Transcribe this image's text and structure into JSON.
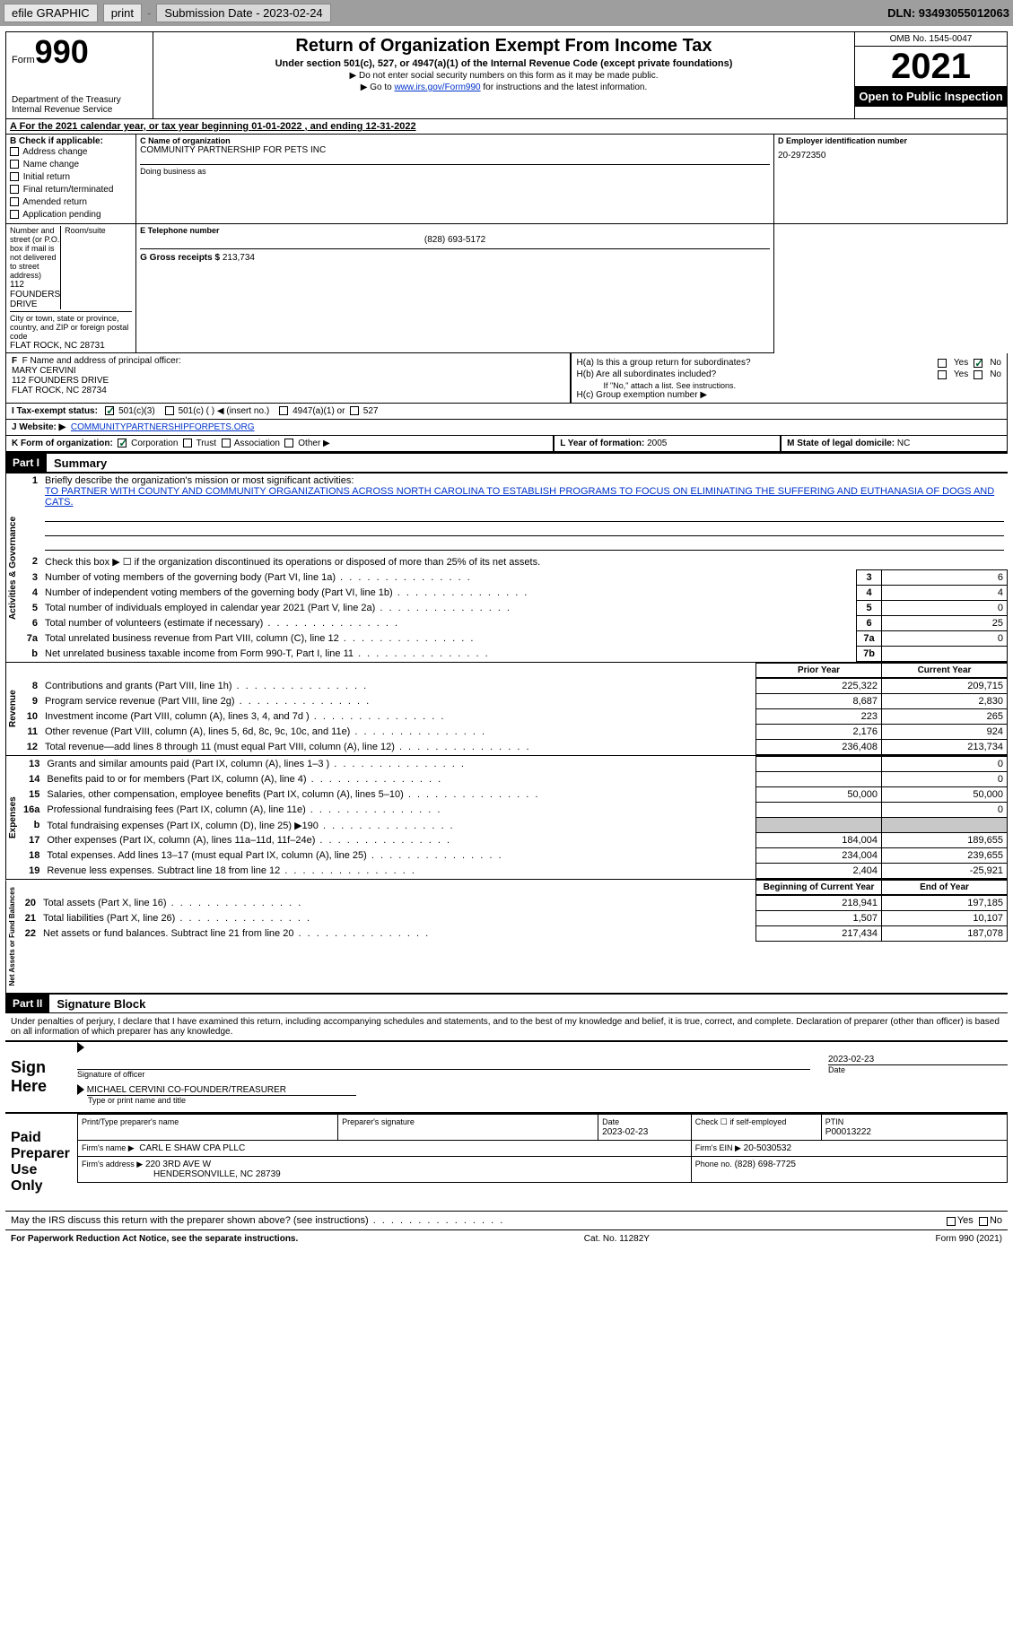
{
  "toolbar": {
    "efile": "efile GRAPHIC",
    "print": "print",
    "sub_date_label": "Submission Date - 2023-02-24",
    "dln": "DLN: 93493055012063"
  },
  "header": {
    "form_word": "Form",
    "form_num": "990",
    "dept": "Department of the Treasury",
    "irs": "Internal Revenue Service",
    "title": "Return of Organization Exempt From Income Tax",
    "subtitle": "Under section 501(c), 527, or 4947(a)(1) of the Internal Revenue Code (except private foundations)",
    "warn1": "▶ Do not enter social security numbers on this form as it may be made public.",
    "warn2_pre": "▶ Go to ",
    "warn2_link": "www.irs.gov/Form990",
    "warn2_post": " for instructions and the latest information.",
    "omb": "OMB No. 1545-0047",
    "year": "2021",
    "open": "Open to Public Inspection"
  },
  "period": {
    "line": "A For the 2021 calendar year, or tax year beginning ",
    "begin": "01-01-2022",
    "mid": " , and ending ",
    "end": "12-31-2022"
  },
  "boxB": {
    "title": "B Check if applicable:",
    "items": [
      "Address change",
      "Name change",
      "Initial return",
      "Final return/terminated",
      "Amended return",
      "Application pending"
    ]
  },
  "boxC": {
    "name_label": "C Name of organization",
    "name": "COMMUNITY PARTNERSHIP FOR PETS INC",
    "dba_label": "Doing business as",
    "street_label": "Number and street (or P.O. box if mail is not delivered to street address)",
    "room_label": "Room/suite",
    "street": "112 FOUNDERS DRIVE",
    "city_label": "City or town, state or province, country, and ZIP or foreign postal code",
    "city": "FLAT ROCK, NC  28731"
  },
  "boxD": {
    "label": "D Employer identification number",
    "val": "20-2972350"
  },
  "boxE": {
    "label": "E Telephone number",
    "val": "(828) 693-5172"
  },
  "boxG": {
    "label": "G Gross receipts $",
    "val": "213,734"
  },
  "boxF": {
    "label": "F Name and address of principal officer:",
    "name": "MARY CERVINI",
    "street": "112 FOUNDERS DRIVE",
    "city": "FLAT ROCK, NC  28734"
  },
  "boxH": {
    "a": "H(a)  Is this a group return for subordinates?",
    "b": "H(b)  Are all subordinates included?",
    "b_note": "If \"No,\" attach a list. See instructions.",
    "c": "H(c)  Group exemption number ▶"
  },
  "boxI": {
    "label": "I  Tax-exempt status:",
    "opts": [
      "501(c)(3)",
      "501(c) (  ) ◀ (insert no.)",
      "4947(a)(1) or",
      "527"
    ]
  },
  "boxJ": {
    "label": "J  Website: ▶",
    "val": "COMMUNITYPARTNERSHIPFORPETS.ORG"
  },
  "boxK": {
    "label": "K Form of organization:",
    "opts": [
      "Corporation",
      "Trust",
      "Association",
      "Other ▶"
    ]
  },
  "boxL": {
    "label": "L Year of formation:",
    "val": "2005"
  },
  "boxM": {
    "label": "M State of legal domicile:",
    "val": "NC"
  },
  "part1": {
    "hdr": "Part I",
    "title": "Summary",
    "q1": "Briefly describe the organization's mission or most significant activities:",
    "mission": "TO PARTNER WITH COUNTY AND COMMUNITY ORGANIZATIONS ACROSS NORTH CAROLINA TO ESTABLISH PROGRAMS TO FOCUS ON ELIMINATING THE SUFFERING AND EUTHANASIA OF DOGS AND CATS.",
    "q2": "Check this box ▶ ☐ if the organization discontinued its operations or disposed of more than 25% of its net assets.",
    "vert_act": "Activities & Governance",
    "vert_rev": "Revenue",
    "vert_exp": "Expenses",
    "vert_net": "Net Assets or Fund Balances",
    "lines_gov": [
      {
        "n": "3",
        "d": "Number of voting members of the governing body (Part VI, line 1a)",
        "box": "3",
        "v": "6"
      },
      {
        "n": "4",
        "d": "Number of independent voting members of the governing body (Part VI, line 1b)",
        "box": "4",
        "v": "4"
      },
      {
        "n": "5",
        "d": "Total number of individuals employed in calendar year 2021 (Part V, line 2a)",
        "box": "5",
        "v": "0"
      },
      {
        "n": "6",
        "d": "Total number of volunteers (estimate if necessary)",
        "box": "6",
        "v": "25"
      },
      {
        "n": "7a",
        "d": "Total unrelated business revenue from Part VIII, column (C), line 12",
        "box": "7a",
        "v": "0"
      },
      {
        "n": "b",
        "d": "Net unrelated business taxable income from Form 990-T, Part I, line 11",
        "box": "7b",
        "v": ""
      }
    ],
    "col_prior": "Prior Year",
    "col_current": "Current Year",
    "lines_rev": [
      {
        "n": "8",
        "d": "Contributions and grants (Part VIII, line 1h)",
        "p": "225,322",
        "c": "209,715"
      },
      {
        "n": "9",
        "d": "Program service revenue (Part VIII, line 2g)",
        "p": "8,687",
        "c": "2,830"
      },
      {
        "n": "10",
        "d": "Investment income (Part VIII, column (A), lines 3, 4, and 7d )",
        "p": "223",
        "c": "265"
      },
      {
        "n": "11",
        "d": "Other revenue (Part VIII, column (A), lines 5, 6d, 8c, 9c, 10c, and 11e)",
        "p": "2,176",
        "c": "924"
      },
      {
        "n": "12",
        "d": "Total revenue—add lines 8 through 11 (must equal Part VIII, column (A), line 12)",
        "p": "236,408",
        "c": "213,734"
      }
    ],
    "lines_exp": [
      {
        "n": "13",
        "d": "Grants and similar amounts paid (Part IX, column (A), lines 1–3 )",
        "p": "",
        "c": "0"
      },
      {
        "n": "14",
        "d": "Benefits paid to or for members (Part IX, column (A), line 4)",
        "p": "",
        "c": "0"
      },
      {
        "n": "15",
        "d": "Salaries, other compensation, employee benefits (Part IX, column (A), lines 5–10)",
        "p": "50,000",
        "c": "50,000"
      },
      {
        "n": "16a",
        "d": "Professional fundraising fees (Part IX, column (A), line 11e)",
        "p": "",
        "c": "0"
      },
      {
        "n": "b",
        "d": "Total fundraising expenses (Part IX, column (D), line 25) ▶190",
        "p": "gray",
        "c": "gray"
      },
      {
        "n": "17",
        "d": "Other expenses (Part IX, column (A), lines 11a–11d, 11f–24e)",
        "p": "184,004",
        "c": "189,655"
      },
      {
        "n": "18",
        "d": "Total expenses. Add lines 13–17 (must equal Part IX, column (A), line 25)",
        "p": "234,004",
        "c": "239,655"
      },
      {
        "n": "19",
        "d": "Revenue less expenses. Subtract line 18 from line 12",
        "p": "2,404",
        "c": "-25,921"
      }
    ],
    "col_begin": "Beginning of Current Year",
    "col_end": "End of Year",
    "lines_net": [
      {
        "n": "20",
        "d": "Total assets (Part X, line 16)",
        "p": "218,941",
        "c": "197,185"
      },
      {
        "n": "21",
        "d": "Total liabilities (Part X, line 26)",
        "p": "1,507",
        "c": "10,107"
      },
      {
        "n": "22",
        "d": "Net assets or fund balances. Subtract line 21 from line 20",
        "p": "217,434",
        "c": "187,078"
      }
    ]
  },
  "part2": {
    "hdr": "Part II",
    "title": "Signature Block",
    "decl": "Under penalties of perjury, I declare that I have examined this return, including accompanying schedules and statements, and to the best of my knowledge and belief, it is true, correct, and complete. Declaration of preparer (other than officer) is based on all information of which preparer has any knowledge.",
    "sign_here": "Sign Here",
    "sig_officer": "Signature of officer",
    "sig_date": "2023-02-23",
    "date_label": "Date",
    "name_title": "MICHAEL CERVINI  CO-FOUNDER/TREASURER",
    "type_label": "Type or print name and title",
    "paid_label": "Paid Preparer Use Only",
    "prep_name_label": "Print/Type preparer's name",
    "prep_sig_label": "Preparer's signature",
    "prep_date_label": "Date",
    "prep_date": "2023-02-23",
    "check_self": "Check ☐ if self-employed",
    "ptin_label": "PTIN",
    "ptin": "P00013222",
    "firm_name_label": "Firm's name    ▶",
    "firm_name": "CARL E SHAW CPA PLLC",
    "firm_ein_label": "Firm's EIN ▶",
    "firm_ein": "20-5030532",
    "firm_addr_label": "Firm's address ▶",
    "firm_addr1": "220 3RD AVE W",
    "firm_addr2": "HENDERSONVILLE, NC  28739",
    "phone_label": "Phone no.",
    "phone": "(828) 698-7725",
    "discuss": "May the IRS discuss this return with the preparer shown above? (see instructions)",
    "yes": "Yes",
    "no": "No"
  },
  "footer": {
    "left": "For Paperwork Reduction Act Notice, see the separate instructions.",
    "mid": "Cat. No. 11282Y",
    "right": "Form 990 (2021)"
  }
}
